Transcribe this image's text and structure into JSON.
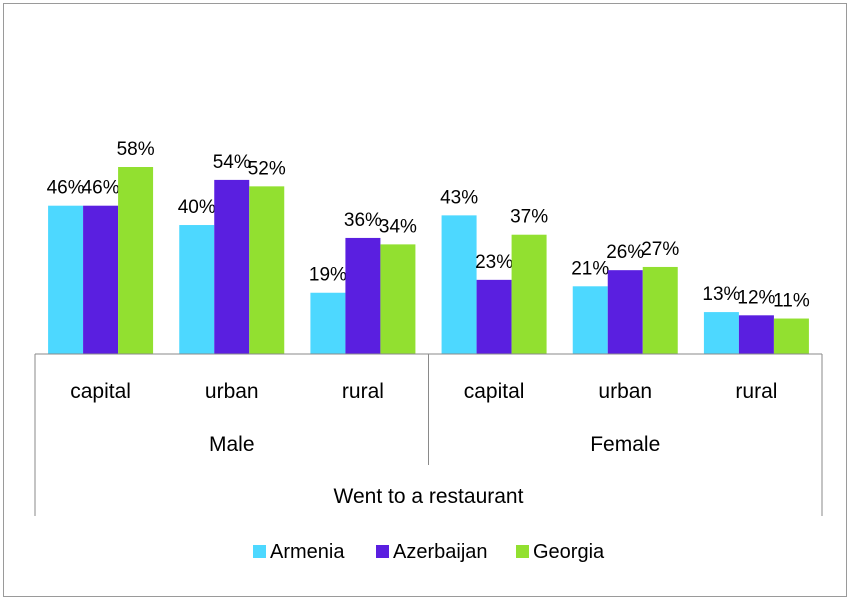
{
  "chart_data": {
    "type": "bar",
    "title": "",
    "ylabel": "",
    "ylim": [
      0,
      70
    ],
    "grid": false,
    "legend": "bottom",
    "outer_group": "Went to a restaurant",
    "groups": [
      {
        "name": "Male",
        "categories": [
          "capital",
          "urban",
          "rural"
        ]
      },
      {
        "name": "Female",
        "categories": [
          "capital",
          "urban",
          "rural"
        ]
      }
    ],
    "series": [
      {
        "name": "Armenia",
        "color": "#4dd8ff",
        "values": [
          46,
          40,
          19,
          43,
          21,
          13
        ],
        "labels": [
          "46%",
          "40%",
          "19%",
          "43%",
          "21%",
          "13%"
        ]
      },
      {
        "name": "Azerbaijan",
        "color": "#5a1fe0",
        "values": [
          46,
          54,
          36,
          23,
          26,
          12
        ],
        "labels": [
          "46%",
          "54%",
          "36%",
          "23%",
          "26%",
          "12%"
        ]
      },
      {
        "name": "Georgia",
        "color": "#92e030",
        "values": [
          58,
          52,
          34,
          37,
          27,
          11
        ],
        "labels": [
          "58%",
          "52%",
          "34%",
          "37%",
          "27%",
          "11%"
        ]
      }
    ]
  }
}
